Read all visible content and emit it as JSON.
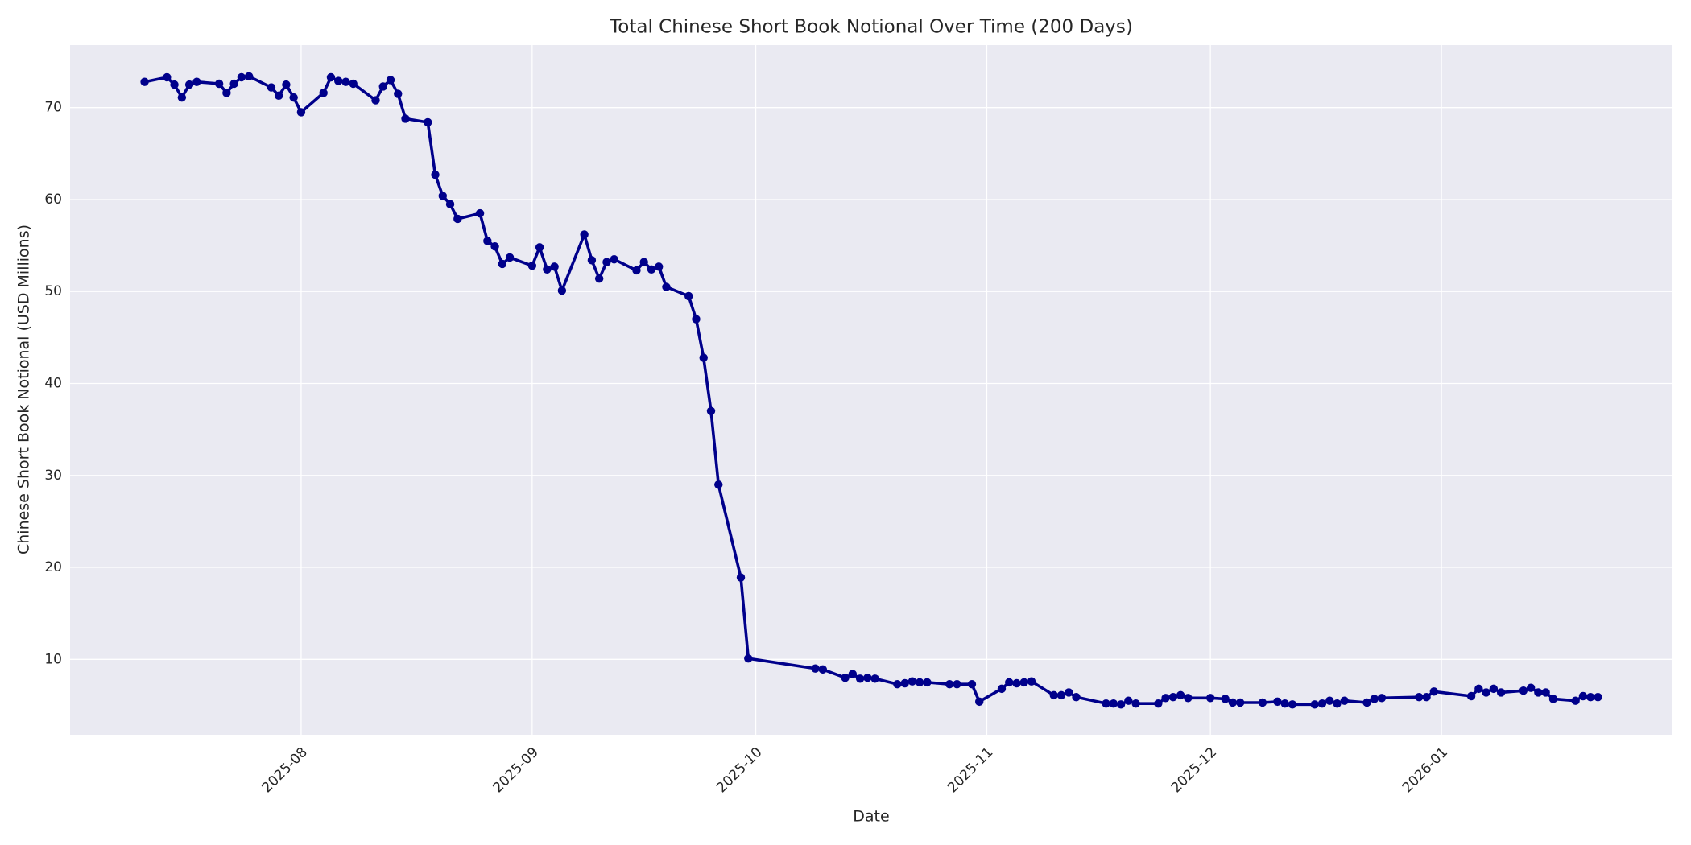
{
  "chart_data": {
    "type": "line",
    "title": "Total Chinese Short Book Notional Over Time (200 Days)",
    "x_label": "Date",
    "y_label": "Chinese Short Book Notional (USD Millions)",
    "x": [
      "2025-07-11",
      "2025-07-14",
      "2025-07-15",
      "2025-07-16",
      "2025-07-17",
      "2025-07-18",
      "2025-07-21",
      "2025-07-22",
      "2025-07-23",
      "2025-07-24",
      "2025-07-25",
      "2025-07-28",
      "2025-07-29",
      "2025-07-30",
      "2025-07-31",
      "2025-08-01",
      "2025-08-04",
      "2025-08-05",
      "2025-08-06",
      "2025-08-07",
      "2025-08-08",
      "2025-08-11",
      "2025-08-12",
      "2025-08-13",
      "2025-08-14",
      "2025-08-15",
      "2025-08-18",
      "2025-08-19",
      "2025-08-20",
      "2025-08-21",
      "2025-08-22",
      "2025-08-25",
      "2025-08-26",
      "2025-08-27",
      "2025-08-28",
      "2025-08-29",
      "2025-09-01",
      "2025-09-02",
      "2025-09-03",
      "2025-09-04",
      "2025-09-05",
      "2025-09-08",
      "2025-09-09",
      "2025-09-10",
      "2025-09-11",
      "2025-09-12",
      "2025-09-15",
      "2025-09-16",
      "2025-09-17",
      "2025-09-18",
      "2025-09-19",
      "2025-09-22",
      "2025-09-23",
      "2025-09-24",
      "2025-09-25",
      "2025-09-26",
      "2025-09-29",
      "2025-09-30",
      "2025-10-09",
      "2025-10-10",
      "2025-10-13",
      "2025-10-14",
      "2025-10-15",
      "2025-10-16",
      "2025-10-17",
      "2025-10-20",
      "2025-10-21",
      "2025-10-22",
      "2025-10-23",
      "2025-10-24",
      "2025-10-27",
      "2025-10-28",
      "2025-10-30",
      "2025-10-31",
      "2025-11-03",
      "2025-11-04",
      "2025-11-05",
      "2025-11-06",
      "2025-11-07",
      "2025-11-10",
      "2025-11-11",
      "2025-11-12",
      "2025-11-13",
      "2025-11-17",
      "2025-11-18",
      "2025-11-19",
      "2025-11-20",
      "2025-11-21",
      "2025-11-24",
      "2025-11-25",
      "2025-11-26",
      "2025-11-27",
      "2025-11-28",
      "2025-12-01",
      "2025-12-03",
      "2025-12-04",
      "2025-12-05",
      "2025-12-08",
      "2025-12-10",
      "2025-12-11",
      "2025-12-12",
      "2025-12-15",
      "2025-12-16",
      "2025-12-17",
      "2025-12-18",
      "2025-12-19",
      "2025-12-22",
      "2025-12-23",
      "2025-12-24",
      "2025-12-29",
      "2025-12-30",
      "2025-12-31",
      "2026-01-05",
      "2026-01-06",
      "2026-01-07",
      "2026-01-08",
      "2026-01-09",
      "2026-01-12",
      "2026-01-13",
      "2026-01-14",
      "2026-01-15",
      "2026-01-16",
      "2026-01-19",
      "2026-01-20",
      "2026-01-21",
      "2026-01-22"
    ],
    "series": [
      {
        "name": "Chinese Short Book Notional",
        "color": "#00008b",
        "values": [
          72.8,
          73.3,
          72.5,
          71.1,
          72.5,
          72.8,
          72.6,
          71.6,
          72.6,
          73.3,
          73.4,
          72.2,
          71.3,
          72.5,
          71.1,
          69.5,
          71.6,
          73.3,
          72.9,
          72.8,
          72.6,
          70.8,
          72.3,
          73.0,
          71.5,
          68.8,
          68.4,
          62.7,
          60.4,
          59.5,
          57.9,
          58.5,
          55.5,
          54.9,
          53.0,
          53.7,
          52.8,
          54.8,
          52.4,
          52.7,
          50.1,
          56.2,
          53.4,
          51.4,
          53.2,
          53.5,
          52.3,
          53.2,
          52.4,
          52.7,
          50.5,
          49.5,
          47.0,
          42.8,
          37.0,
          29.0,
          18.9,
          10.1,
          9.0,
          8.9,
          8.0,
          8.4,
          7.9,
          8.0,
          7.9,
          7.3,
          7.4,
          7.6,
          7.5,
          7.5,
          7.3,
          7.3,
          7.3,
          5.4,
          6.8,
          7.5,
          7.4,
          7.5,
          7.6,
          6.1,
          6.1,
          6.4,
          5.9,
          5.2,
          5.2,
          5.1,
          5.5,
          5.2,
          5.2,
          5.8,
          5.9,
          6.1,
          5.8,
          5.8,
          5.7,
          5.3,
          5.3,
          5.3,
          5.4,
          5.2,
          5.1,
          5.1,
          5.2,
          5.5,
          5.2,
          5.5,
          5.3,
          5.7,
          5.8,
          5.9,
          5.9,
          6.5,
          6.0,
          6.8,
          6.4,
          6.8,
          6.4,
          6.6,
          6.9,
          6.4,
          6.4,
          5.7,
          5.5,
          6.0,
          5.9,
          5.9
        ]
      }
    ],
    "xlim": [
      "2025-07-01",
      "2026-02-01"
    ],
    "xticks": [
      {
        "value": "2025-08-01",
        "label": "2025-08"
      },
      {
        "value": "2025-09-01",
        "label": "2025-09"
      },
      {
        "value": "2025-10-01",
        "label": "2025-10"
      },
      {
        "value": "2025-11-01",
        "label": "2025-11"
      },
      {
        "value": "2025-12-01",
        "label": "2025-12"
      },
      {
        "value": "2026-01-01",
        "label": "2026-01"
      }
    ],
    "ylim": [
      1.8,
      76.8
    ],
    "yticks": [
      10,
      20,
      30,
      40,
      50,
      60,
      70
    ],
    "grid": true
  }
}
